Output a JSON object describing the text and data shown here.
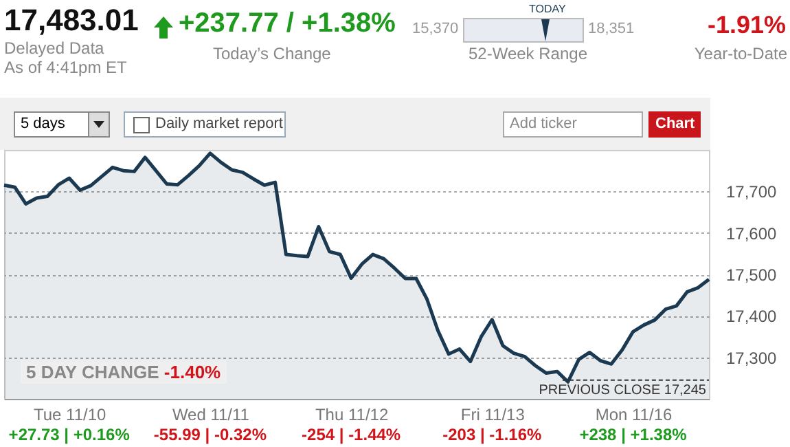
{
  "chart_data": {
    "type": "area",
    "categories": [
      null,
      null,
      null,
      null,
      null,
      null,
      "Tue 11/10",
      null,
      null,
      null,
      null,
      null,
      null,
      null,
      null,
      null,
      null,
      null,
      null,
      "Wed 11/11",
      null,
      null,
      null,
      null,
      null,
      null,
      null,
      null,
      null,
      null,
      null,
      null,
      "Thu 11/12",
      null,
      null,
      null,
      null,
      null,
      null,
      null,
      null,
      null,
      null,
      null,
      null,
      "Fri 11/13",
      null,
      null,
      null,
      null,
      null,
      null,
      null,
      null,
      null,
      null,
      null,
      null,
      "Mon 11/16",
      null,
      null,
      null,
      null,
      null,
      null,
      null
    ],
    "series": [
      {
        "color": "#1b3a52",
        "values": [
          17715,
          17710,
          17670,
          17684,
          17688,
          17716,
          17732,
          17703,
          17714,
          17736,
          17758,
          17750,
          17748,
          17782,
          17750,
          17718,
          17716,
          17738,
          17762,
          17792,
          17770,
          17752,
          17746,
          17730,
          17715,
          17722,
          17548,
          17545,
          17543,
          17615,
          17555,
          17548,
          17491,
          17525,
          17548,
          17538,
          17515,
          17490,
          17490,
          17440,
          17365,
          17308,
          17320,
          17290,
          17350,
          17391,
          17328,
          17310,
          17302,
          17280,
          17262,
          17266,
          17241,
          17295,
          17312,
          17292,
          17284,
          17318,
          17362,
          17378,
          17390,
          17416,
          17424,
          17458,
          17468,
          17488
        ]
      }
    ],
    "ylim": [
      17200,
      17800
    ],
    "yticks": [
      {
        "value": 17300,
        "label": "17,300"
      },
      {
        "value": 17400,
        "label": "17,400"
      },
      {
        "value": 17500,
        "label": "17,500"
      },
      {
        "value": 17600,
        "label": "17,600"
      },
      {
        "value": 17700,
        "label": "17,700"
      }
    ],
    "grid": "y",
    "ref_lines": [
      {
        "axis": "y",
        "value": 17245,
        "label": "PREVIOUS CLOSE 17,245",
        "color": "#333333",
        "line_style": "dashed"
      }
    ],
    "annotations": [
      "17,483.01",
      "Delayed Data",
      "As of 4:41pm ET",
      "+237.77 / +1.38%",
      "Today’s Change",
      "15,370",
      "18,351",
      "TODAY",
      "52-Week Range",
      "-1.91%",
      "Year-to-Date",
      "5 days",
      "Daily market report",
      "Add ticker",
      "Chart",
      "5 DAY CHANGE",
      "-1.40%",
      "+27.73 | +0.16%",
      "-55.99 | -0.32%",
      "-254 | -1.44%",
      "-203 | -1.16%",
      "+238 | +1.38%"
    ]
  }
}
